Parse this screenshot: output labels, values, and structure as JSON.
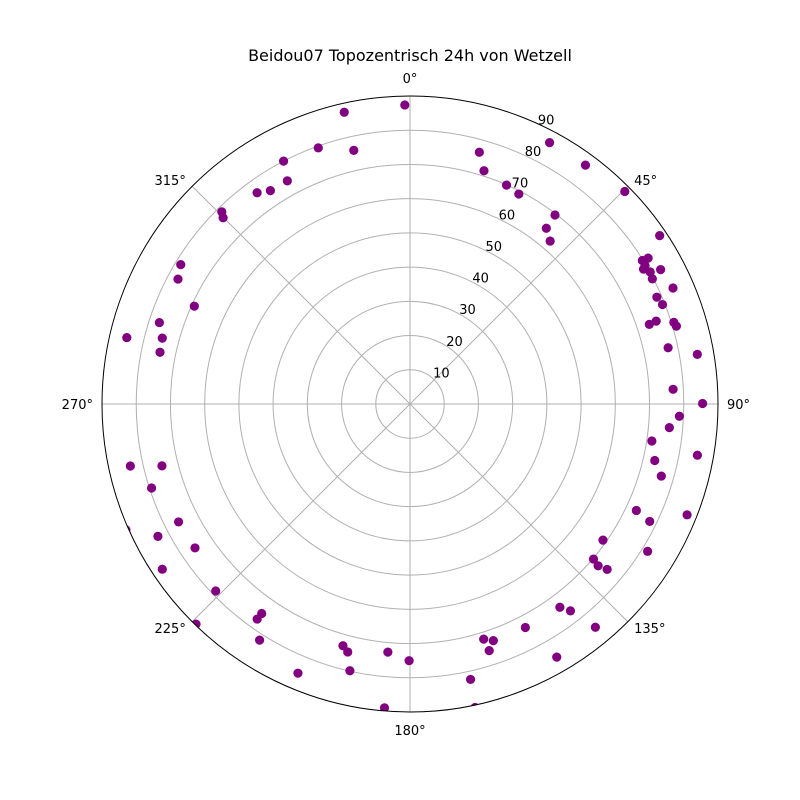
{
  "chart_data": {
    "type": "scatter",
    "projection": "polar",
    "title": "Beidou07 Topozentrisch 24h von Wetzell",
    "theta_zero_location": "N",
    "theta_direction": "clockwise",
    "r_axis": {
      "range": [
        0,
        90
      ],
      "ticks": [
        10,
        20,
        30,
        40,
        50,
        60,
        70,
        80,
        90
      ],
      "tick_labels": [
        "10",
        "20",
        "30",
        "40",
        "50",
        "60",
        "70",
        "80",
        "90"
      ],
      "label_angle_deg": 22.5
    },
    "theta_axis": {
      "ticks_deg": [
        0,
        45,
        90,
        135,
        180,
        225,
        270,
        315
      ],
      "tick_labels": [
        "0°",
        "45°",
        "90°",
        "135°",
        "180°",
        "225°",
        "270°",
        "315°"
      ]
    },
    "grid": true,
    "marker_color": "#800080",
    "series": [
      {
        "points": [
          {
            "az": 359,
            "r": 87.4
          },
          {
            "az": 28.1,
            "r": 86.6
          },
          {
            "az": 36.3,
            "r": 86.6
          },
          {
            "az": 15.4,
            "r": 76.3
          },
          {
            "az": 17.6,
            "r": 71.5
          },
          {
            "az": 23.8,
            "r": 69.9
          },
          {
            "az": 27.4,
            "r": 69.1
          },
          {
            "az": 37.5,
            "r": 69.6
          },
          {
            "az": 37.8,
            "r": 65.0
          },
          {
            "az": 40.7,
            "r": 62.8
          },
          {
            "az": 45.3,
            "r": 88.3
          },
          {
            "az": 56.0,
            "r": 88.0
          },
          {
            "az": 58.5,
            "r": 81.6
          },
          {
            "az": 58.3,
            "r": 79.8
          },
          {
            "az": 59.5,
            "r": 79.7
          },
          {
            "az": 60.0,
            "r": 78.8
          },
          {
            "az": 61.2,
            "r": 80.1
          },
          {
            "az": 61.8,
            "r": 83.1
          },
          {
            "az": 62.7,
            "r": 79.7
          },
          {
            "az": 66.6,
            "r": 78.6
          },
          {
            "az": 66.2,
            "r": 84.0
          },
          {
            "az": 68.5,
            "r": 79.3
          },
          {
            "az": 71.6,
            "r": 73.7
          },
          {
            "az": 71.4,
            "r": 75.9
          },
          {
            "az": 72.8,
            "r": 80.7
          },
          {
            "az": 73.7,
            "r": 81.1
          },
          {
            "az": 77.7,
            "r": 77.2
          },
          {
            "az": 80.2,
            "r": 85.2
          },
          {
            "az": 86.8,
            "r": 77.0
          },
          {
            "az": 89.9,
            "r": 85.5
          },
          {
            "az": 92.6,
            "r": 78.8
          },
          {
            "az": 95.2,
            "r": 76.1
          },
          {
            "az": 98.7,
            "r": 71.5
          },
          {
            "az": 100.1,
            "r": 85.3
          },
          {
            "az": 103.0,
            "r": 73.4
          },
          {
            "az": 106.0,
            "r": 76.4
          },
          {
            "az": 111.8,
            "r": 87.2
          },
          {
            "az": 115.2,
            "r": 73.1
          },
          {
            "az": 116.1,
            "r": 78.0
          },
          {
            "az": 121.8,
            "r": 81.7
          },
          {
            "az": 125.2,
            "r": 69.0
          },
          {
            "az": 130.0,
            "r": 75.2
          },
          {
            "az": 130.2,
            "r": 70.2
          },
          {
            "az": 130.7,
            "r": 72.5
          },
          {
            "az": 140.3,
            "r": 84.8
          },
          {
            "az": 142.2,
            "r": 76.5
          },
          {
            "az": 143.6,
            "r": 73.8
          },
          {
            "az": 149.9,
            "r": 85.5
          },
          {
            "az": 152.7,
            "r": 73.5
          },
          {
            "az": 160.6,
            "r": 73.3
          },
          {
            "az": 162.2,
            "r": 75.7
          },
          {
            "az": 162.6,
            "r": 72.0
          },
          {
            "az": 167.6,
            "r": 82.4
          },
          {
            "az": 167.9,
            "r": 90.7
          },
          {
            "az": 180.2,
            "r": 75.0
          },
          {
            "az": 184.8,
            "r": 89.1
          },
          {
            "az": 185.1,
            "r": 72.8
          },
          {
            "az": 192.7,
            "r": 79.9
          },
          {
            "az": 194.1,
            "r": 74.7
          },
          {
            "az": 195.5,
            "r": 73.3
          },
          {
            "az": 202.6,
            "r": 85.2
          },
          {
            "az": 212.5,
            "r": 81.8
          },
          {
            "az": 215.4,
            "r": 77.1
          },
          {
            "az": 215.3,
            "r": 75.0
          },
          {
            "az": 224.2,
            "r": 89.7
          },
          {
            "az": 226.1,
            "r": 78.8
          },
          {
            "az": 236.2,
            "r": 75.6
          },
          {
            "az": 236.3,
            "r": 87.0
          },
          {
            "az": 242.3,
            "r": 83.2
          },
          {
            "az": 243.0,
            "r": 75.9
          },
          {
            "az": 246.1,
            "r": 90.8
          },
          {
            "az": 252.0,
            "r": 79.4
          },
          {
            "az": 256.0,
            "r": 74.7
          },
          {
            "az": 257.5,
            "r": 83.7
          },
          {
            "az": 281.7,
            "r": 74.6
          },
          {
            "az": 284.9,
            "r": 74.9
          },
          {
            "az": 283.2,
            "r": 85.0
          },
          {
            "az": 288.0,
            "r": 77.0
          },
          {
            "az": 294.4,
            "r": 69.2
          },
          {
            "az": 298.3,
            "r": 77.0
          },
          {
            "az": 301.3,
            "r": 78.4
          },
          {
            "az": 314.9,
            "r": 77.1
          },
          {
            "az": 315.6,
            "r": 78.6
          },
          {
            "az": 324.1,
            "r": 76.2
          },
          {
            "az": 326.8,
            "r": 74.5
          },
          {
            "az": 331.2,
            "r": 74.4
          },
          {
            "az": 332.5,
            "r": 80.0
          },
          {
            "az": 340.3,
            "r": 79.5
          },
          {
            "az": 347.5,
            "r": 75.9
          },
          {
            "az": 347.3,
            "r": 87.4
          }
        ]
      }
    ]
  }
}
